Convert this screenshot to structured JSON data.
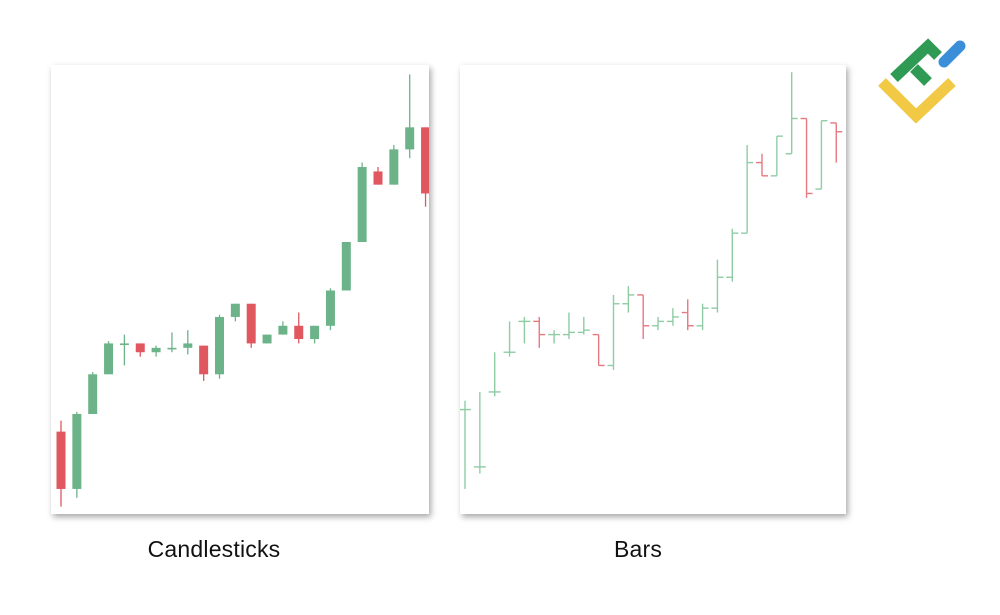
{
  "captions": {
    "candlesticks": "Candlesticks",
    "bars": "Bars"
  },
  "colors": {
    "up": "#6db38a",
    "down": "#e0575f",
    "up_bar": "#8fcca4",
    "down_bar": "#e57880",
    "logo_green": "#2f9a53",
    "logo_blue": "#3a8fd8",
    "logo_yellow": "#f2c945"
  },
  "icons": {
    "logo": "brand-logo-icon"
  },
  "chart_data": [
    {
      "type": "candlestick",
      "title": "Candlesticks",
      "ylim": [
        0,
        100
      ],
      "candles": [
        {
          "o": 18,
          "h": 20.5,
          "l": 1,
          "c": 5
        },
        {
          "o": 5,
          "h": 22.5,
          "l": 3,
          "c": 22
        },
        {
          "o": 22,
          "h": 31.5,
          "l": 22,
          "c": 31
        },
        {
          "o": 31,
          "h": 38.5,
          "l": 31,
          "c": 38
        },
        {
          "o": 38,
          "h": 40,
          "l": 33,
          "c": 38
        },
        {
          "o": 38,
          "h": 38,
          "l": 35,
          "c": 36
        },
        {
          "o": 36,
          "h": 37.5,
          "l": 35,
          "c": 37
        },
        {
          "o": 37,
          "h": 40.5,
          "l": 36,
          "c": 37
        },
        {
          "o": 37,
          "h": 41,
          "l": 35.5,
          "c": 38
        },
        {
          "o": 37.5,
          "h": 37.5,
          "l": 29.5,
          "c": 31
        },
        {
          "o": 31,
          "h": 44.5,
          "l": 30,
          "c": 44
        },
        {
          "o": 44,
          "h": 47,
          "l": 43,
          "c": 47
        },
        {
          "o": 47,
          "h": 47,
          "l": 37,
          "c": 38
        },
        {
          "o": 38,
          "h": 40,
          "l": 38,
          "c": 40
        },
        {
          "o": 40,
          "h": 43,
          "l": 40,
          "c": 42
        },
        {
          "o": 42,
          "h": 45,
          "l": 38,
          "c": 39
        },
        {
          "o": 39,
          "h": 42,
          "l": 38,
          "c": 42
        },
        {
          "o": 42,
          "h": 50.5,
          "l": 41,
          "c": 50
        },
        {
          "o": 50,
          "h": 61,
          "l": 50,
          "c": 61
        },
        {
          "o": 61,
          "h": 79,
          "l": 61,
          "c": 78
        },
        {
          "o": 77,
          "h": 78,
          "l": 74,
          "c": 74
        },
        {
          "o": 74,
          "h": 83,
          "l": 74,
          "c": 82
        },
        {
          "o": 82,
          "h": 99,
          "l": 80,
          "c": 87
        },
        {
          "o": 87,
          "h": 87,
          "l": 69,
          "c": 72
        }
      ]
    },
    {
      "type": "ohlc-bar",
      "title": "Bars",
      "ylim": [
        0,
        100
      ],
      "bars": [
        {
          "o": 23,
          "h": 25,
          "l": 5,
          "c": 23
        },
        {
          "o": 10,
          "h": 27,
          "l": 8.5,
          "c": 10
        },
        {
          "o": 27,
          "h": 36,
          "l": 26,
          "c": 27
        },
        {
          "o": 36,
          "h": 43,
          "l": 35,
          "c": 36
        },
        {
          "o": 43,
          "h": 44,
          "l": 38,
          "c": 43
        },
        {
          "o": 43,
          "h": 44,
          "l": 37,
          "c": 40
        },
        {
          "o": 40,
          "h": 41,
          "l": 38,
          "c": 40
        },
        {
          "o": 40,
          "h": 45,
          "l": 39,
          "c": 40.5
        },
        {
          "o": 40.5,
          "h": 44,
          "l": 40,
          "c": 41
        },
        {
          "o": 40,
          "h": 40,
          "l": 33,
          "c": 33
        },
        {
          "o": 33,
          "h": 49,
          "l": 32,
          "c": 47
        },
        {
          "o": 47,
          "h": 51,
          "l": 45,
          "c": 49
        },
        {
          "o": 49,
          "h": 49,
          "l": 39,
          "c": 42
        },
        {
          "o": 42,
          "h": 44,
          "l": 41,
          "c": 43
        },
        {
          "o": 43,
          "h": 46,
          "l": 42,
          "c": 44
        },
        {
          "o": 45,
          "h": 48,
          "l": 41,
          "c": 42
        },
        {
          "o": 42,
          "h": 47,
          "l": 41,
          "c": 46
        },
        {
          "o": 46,
          "h": 57,
          "l": 45,
          "c": 53
        },
        {
          "o": 53,
          "h": 64,
          "l": 52,
          "c": 63
        },
        {
          "o": 63,
          "h": 83,
          "l": 63,
          "c": 79
        },
        {
          "o": 79,
          "h": 81,
          "l": 76,
          "c": 76
        },
        {
          "o": 76,
          "h": 85,
          "l": 76,
          "c": 85
        },
        {
          "o": 81,
          "h": 99.5,
          "l": 81,
          "c": 89
        },
        {
          "o": 89,
          "h": 89,
          "l": 71,
          "c": 72
        },
        {
          "o": 73,
          "h": 88.5,
          "l": 73,
          "c": 88.5
        },
        {
          "o": 88,
          "h": 88,
          "l": 79,
          "c": 86
        }
      ]
    }
  ]
}
